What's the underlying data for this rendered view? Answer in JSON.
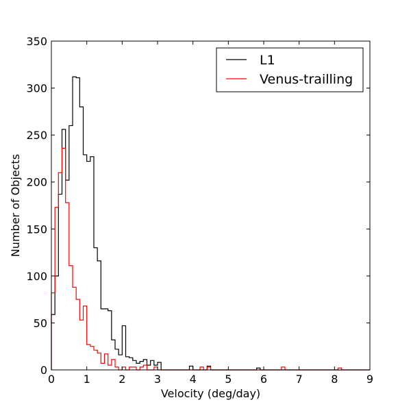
{
  "chart_data": {
    "type": "histogram-step",
    "title": "",
    "xlabel": "Velocity (deg/day)",
    "ylabel": "Number of Objects",
    "xlim": [
      0,
      9
    ],
    "ylim": [
      0,
      350
    ],
    "xticks": [
      "0",
      "1",
      "2",
      "3",
      "4",
      "5",
      "6",
      "7",
      "8",
      "9"
    ],
    "yticks": [
      "0",
      "50",
      "100",
      "150",
      "200",
      "250",
      "300",
      "350"
    ],
    "grid": false,
    "legend_position": "top-right",
    "bin_width": 0.1,
    "series": [
      {
        "name": "L1",
        "color": "#000000",
        "bin_start": 0.0,
        "values": [
          59,
          100,
          187,
          256,
          202,
          260,
          312,
          311,
          280,
          229,
          222,
          227,
          130,
          116,
          65,
          65,
          63,
          32,
          22,
          16,
          47,
          14,
          13,
          10,
          7,
          9,
          11,
          5,
          10,
          5,
          8,
          0,
          0,
          0,
          0,
          0,
          0,
          0,
          0,
          4,
          0,
          0,
          0,
          0,
          4,
          0,
          0,
          0,
          0,
          0,
          0,
          0,
          0,
          0,
          0,
          0,
          0,
          0,
          2,
          0,
          0,
          0,
          0,
          0,
          0,
          0,
          0,
          0,
          0,
          0,
          0,
          0,
          0,
          0,
          0,
          0,
          0,
          0,
          0,
          0,
          0,
          0,
          0,
          0,
          0,
          0,
          0,
          0,
          0,
          0
        ]
      },
      {
        "name": "Venus-trailling",
        "color": "#ff0000",
        "bin_start": 0.0,
        "values": [
          82,
          173,
          210,
          236,
          178,
          111,
          88,
          75,
          53,
          68,
          27,
          25,
          21,
          18,
          7,
          17,
          5,
          11,
          3,
          0,
          3,
          0,
          3,
          3,
          0,
          3,
          5,
          0,
          0,
          3,
          0,
          0,
          0,
          0,
          0,
          0,
          0,
          0,
          0,
          0,
          0,
          0,
          3,
          0,
          3,
          0,
          0,
          0,
          0,
          0,
          0,
          0,
          0,
          0,
          0,
          0,
          0,
          0,
          0,
          0,
          0,
          0,
          0,
          0,
          0,
          3,
          0,
          0,
          0,
          0,
          0,
          0,
          0,
          0,
          0,
          0,
          0,
          0,
          0,
          0,
          0,
          2,
          0,
          0,
          0,
          0,
          0,
          0,
          0,
          0
        ]
      }
    ]
  }
}
